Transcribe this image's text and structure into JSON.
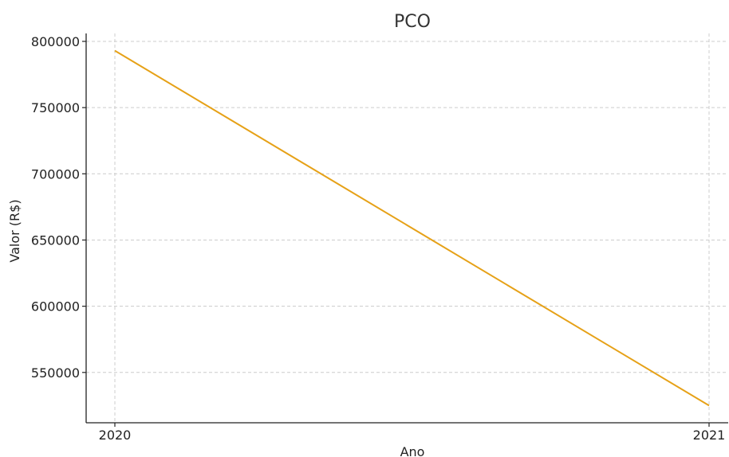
{
  "chart_data": {
    "type": "line",
    "title": "PCO",
    "xlabel": "Ano",
    "ylabel": "Valor (R$)",
    "categories": [
      "2020",
      "2021"
    ],
    "series": [
      {
        "values": [
          793000,
          525000
        ],
        "color": "#e6a117"
      }
    ],
    "ylim": [
      512000,
      806000
    ],
    "yticks": [
      550000,
      600000,
      650000,
      700000,
      750000,
      800000
    ],
    "ytick_labels": [
      "550000",
      "600000",
      "650000",
      "700000",
      "750000",
      "800000"
    ],
    "grid": true,
    "legend": "none"
  }
}
